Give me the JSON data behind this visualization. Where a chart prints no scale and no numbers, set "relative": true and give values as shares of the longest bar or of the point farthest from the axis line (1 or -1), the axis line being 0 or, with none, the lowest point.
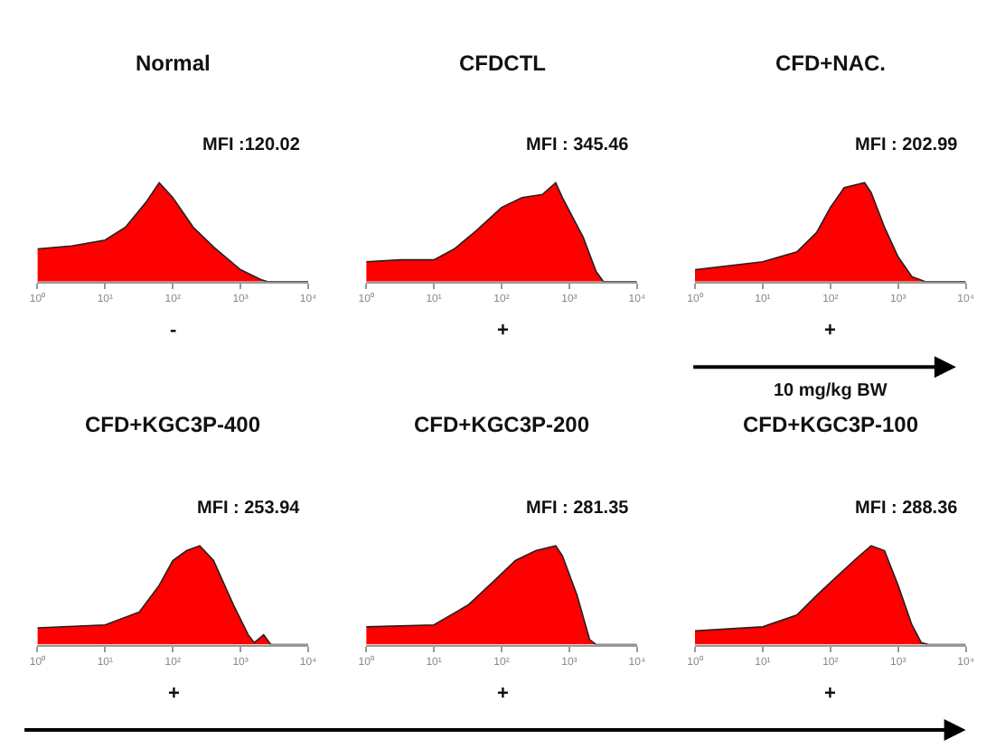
{
  "chart_data": [
    {
      "type": "area",
      "title": "Normal",
      "relative": true,
      "log": "x",
      "color": "#ff0000",
      "annotations": [
        "MFI :120.02",
        "-"
      ],
      "x": [
        1,
        3.2,
        10,
        20,
        40,
        63,
        100,
        200,
        400,
        1000,
        2000,
        2500,
        10000
      ],
      "values": [
        0.33,
        0.36,
        0.42,
        0.55,
        0.8,
        1.0,
        0.85,
        0.55,
        0.35,
        0.12,
        0.02,
        0,
        0
      ],
      "xlim": [
        1,
        10000
      ],
      "xticks": [
        {
          "value": 1,
          "label": "10⁰"
        },
        {
          "value": 10,
          "label": "10¹"
        },
        {
          "value": 100,
          "label": "10²"
        },
        {
          "value": 1000,
          "label": "10³"
        },
        {
          "value": 10000,
          "label": "10⁴"
        }
      ]
    },
    {
      "type": "area",
      "title": "CFDCTL",
      "relative": true,
      "log": "x",
      "color": "#ff0000",
      "annotations": [
        "MFI : 345.46",
        "+"
      ],
      "x": [
        1,
        3.2,
        10,
        20,
        40,
        100,
        200,
        400,
        630,
        790,
        1600,
        2500,
        3200,
        10000
      ],
      "values": [
        0.2,
        0.22,
        0.22,
        0.33,
        0.5,
        0.75,
        0.85,
        0.88,
        1.0,
        0.85,
        0.45,
        0.1,
        0,
        0
      ],
      "xlim": [
        1,
        10000
      ],
      "xticks": [
        {
          "value": 1,
          "label": "10⁰"
        },
        {
          "value": 10,
          "label": "10¹"
        },
        {
          "value": 100,
          "label": "10²"
        },
        {
          "value": 1000,
          "label": "10³"
        },
        {
          "value": 10000,
          "label": "10⁴"
        }
      ]
    },
    {
      "type": "area",
      "title": "CFD+NAC.",
      "relative": true,
      "log": "x",
      "color": "#ff0000",
      "annotations": [
        "MFI : 202.99",
        "+",
        "10 mg/kg BW"
      ],
      "x": [
        1,
        10,
        32,
        63,
        100,
        160,
        320,
        400,
        630,
        1000,
        1600,
        2500,
        10000
      ],
      "values": [
        0.12,
        0.2,
        0.3,
        0.5,
        0.75,
        0.95,
        1.0,
        0.9,
        0.55,
        0.25,
        0.05,
        0,
        0
      ],
      "xlim": [
        1,
        10000
      ],
      "xticks": [
        {
          "value": 1,
          "label": "10⁰"
        },
        {
          "value": 10,
          "label": "10¹"
        },
        {
          "value": 100,
          "label": "10²"
        },
        {
          "value": 1000,
          "label": "10³"
        },
        {
          "value": 10000,
          "label": "10⁴"
        }
      ]
    },
    {
      "type": "area",
      "title": "CFD+KGC3P-400",
      "relative": true,
      "log": "x",
      "color": "#ff0000",
      "annotations": [
        "MFI : 253.94",
        "+"
      ],
      "x": [
        1,
        10,
        32,
        63,
        100,
        160,
        250,
        400,
        790,
        1300,
        1600,
        2200,
        2800,
        10000
      ],
      "values": [
        0.17,
        0.2,
        0.33,
        0.6,
        0.85,
        0.95,
        1.0,
        0.85,
        0.4,
        0.1,
        0.02,
        0.1,
        0,
        0
      ],
      "xlim": [
        1,
        10000
      ],
      "xticks": [
        {
          "value": 1,
          "label": "10⁰"
        },
        {
          "value": 10,
          "label": "10¹"
        },
        {
          "value": 100,
          "label": "10²"
        },
        {
          "value": 1000,
          "label": "10³"
        },
        {
          "value": 10000,
          "label": "10⁴"
        }
      ]
    },
    {
      "type": "area",
      "title": "CFD+KGC3P-200",
      "relative": true,
      "log": "x",
      "color": "#ff0000",
      "annotations": [
        "MFI : 281.35",
        "+"
      ],
      "x": [
        1,
        10,
        32,
        79,
        160,
        320,
        630,
        790,
        1300,
        2000,
        2500,
        10000
      ],
      "values": [
        0.18,
        0.2,
        0.4,
        0.65,
        0.85,
        0.95,
        1.0,
        0.9,
        0.5,
        0.05,
        0,
        0
      ],
      "xlim": [
        1,
        10000
      ],
      "xticks": [
        {
          "value": 1,
          "label": "10⁰"
        },
        {
          "value": 10,
          "label": "10¹"
        },
        {
          "value": 100,
          "label": "10²"
        },
        {
          "value": 1000,
          "label": "10³"
        },
        {
          "value": 10000,
          "label": "10⁴"
        }
      ]
    },
    {
      "type": "area",
      "title": "CFD+KGC3P-100",
      "relative": true,
      "log": "x",
      "color": "#ff0000",
      "annotations": [
        "MFI : 288.36",
        "+"
      ],
      "x": [
        1,
        10,
        32,
        63,
        130,
        250,
        400,
        630,
        1000,
        1600,
        2200,
        2800,
        10000
      ],
      "values": [
        0.14,
        0.18,
        0.3,
        0.5,
        0.7,
        0.88,
        1.0,
        0.95,
        0.6,
        0.2,
        0.02,
        0,
        0
      ],
      "xlim": [
        1,
        10000
      ],
      "xticks": [
        {
          "value": 1,
          "label": "10⁰"
        },
        {
          "value": 10,
          "label": "10¹"
        },
        {
          "value": 100,
          "label": "10²"
        },
        {
          "value": 1000,
          "label": "10³"
        },
        {
          "value": 10000,
          "label": "10⁴"
        }
      ]
    }
  ]
}
